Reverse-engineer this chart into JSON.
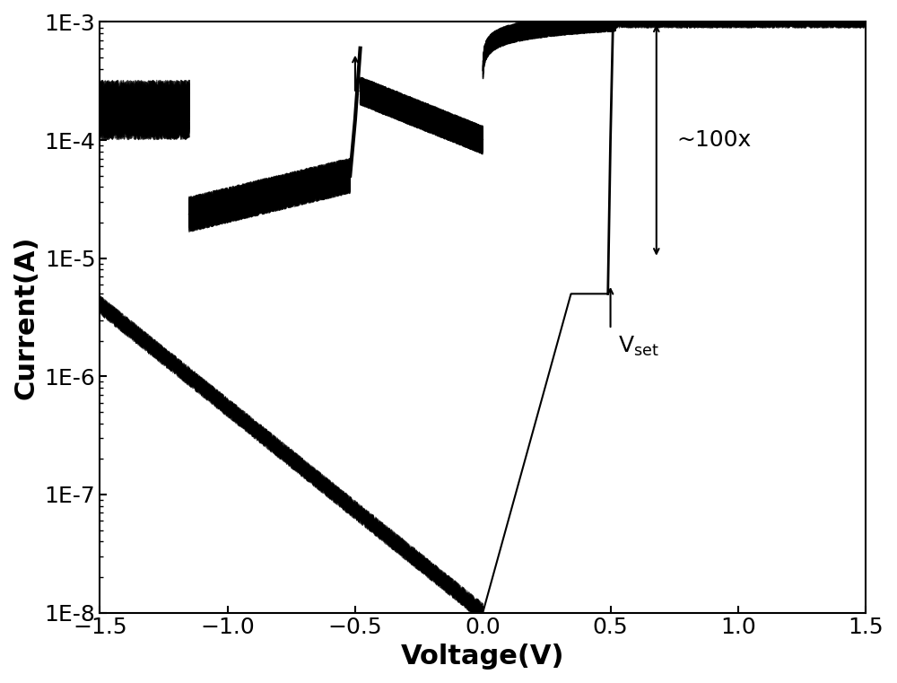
{
  "xlabel": "Voltage(V)",
  "ylabel": "Current(A)",
  "xlim": [
    -1.5,
    1.5
  ],
  "ylim_log": [
    -8,
    -3
  ],
  "xticks": [
    -1.5,
    -1.0,
    -0.5,
    0.0,
    0.5,
    1.0,
    1.5
  ],
  "ytick_labels": [
    "1E-8",
    "1E-7",
    "1E-6",
    "1E-5",
    "1E-4",
    "1E-3"
  ],
  "line_color": "#000000",
  "annotation_100x": "~100x",
  "xlabel_fontsize": 22,
  "ylabel_fontsize": 22,
  "tick_fontsize": 18,
  "annotation_fontsize": 18,
  "figsize": [
    10.0,
    7.61
  ],
  "dpi": 100
}
